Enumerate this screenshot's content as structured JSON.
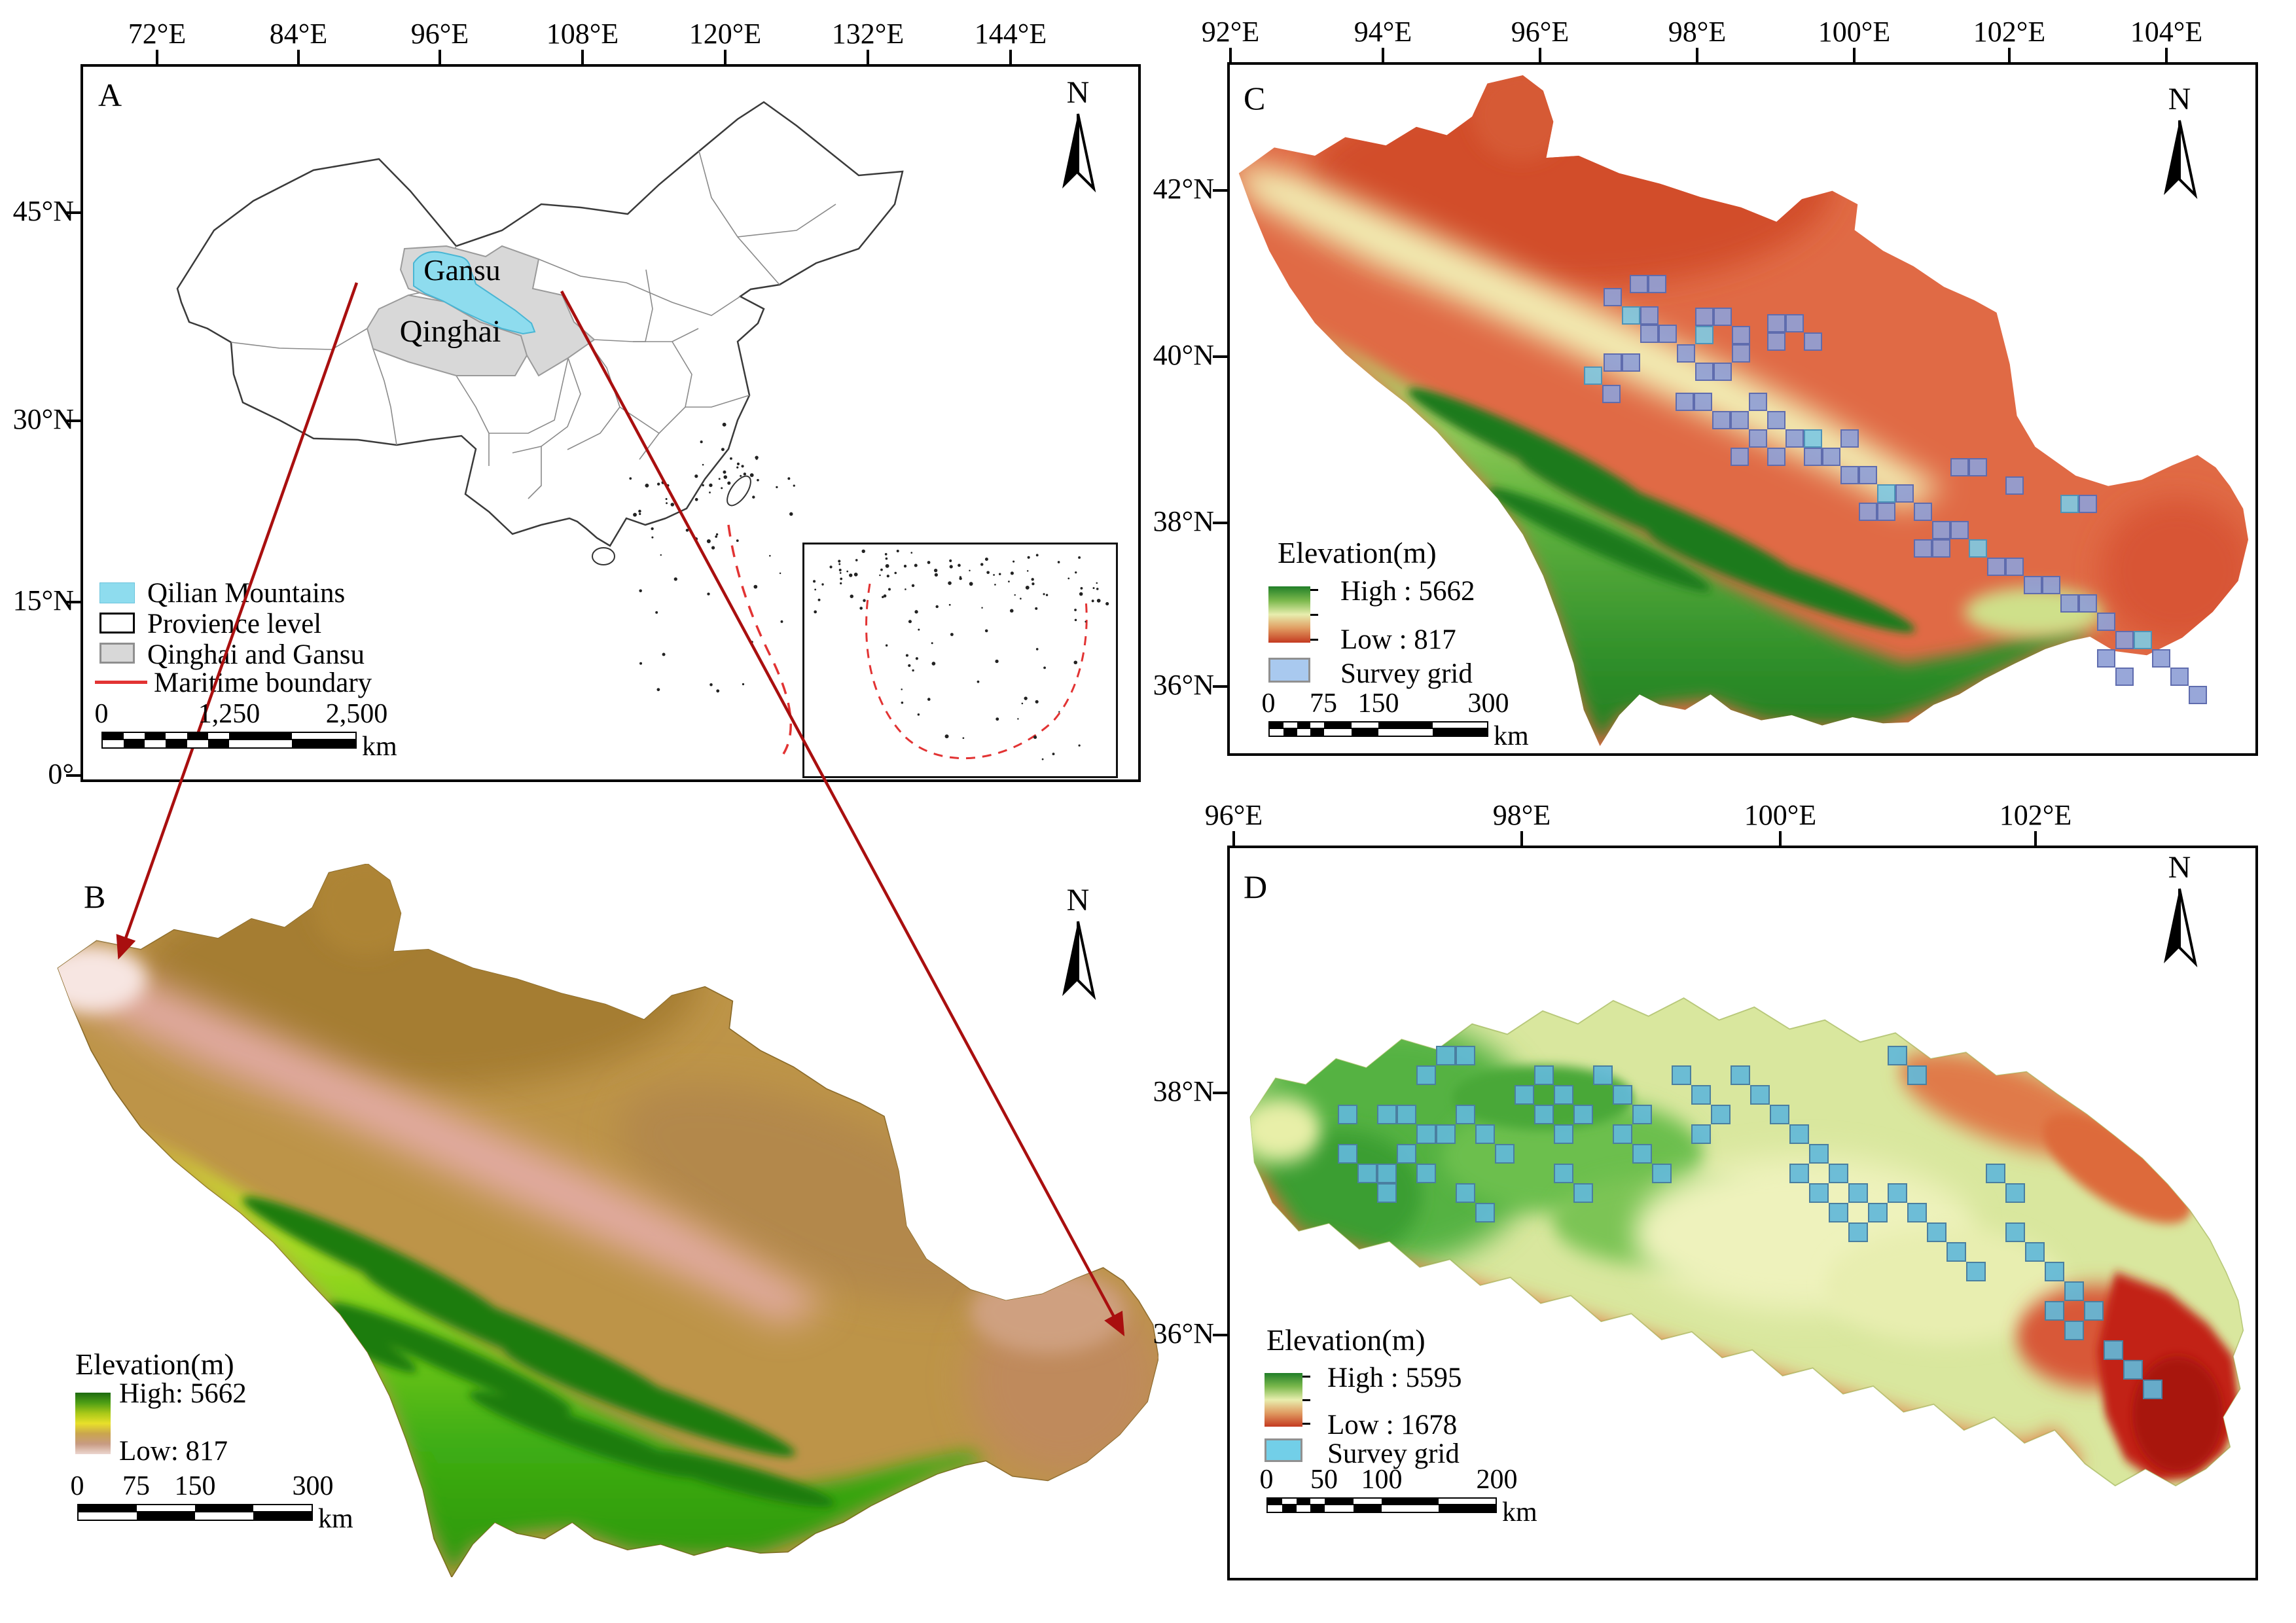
{
  "colors": {
    "qilian_fill": "#8edcee",
    "province_gray": "#d8d8d8",
    "maritime_red": "#e23333",
    "connector_red": "#a90f0f",
    "grid_color_c": "#8f9fd6",
    "grid_color_d": "#62b9d9"
  },
  "panelA": {
    "label": "A",
    "north": "N",
    "x_ticks": [
      "72°E",
      "84°E",
      "96°E",
      "108°E",
      "120°E",
      "132°E",
      "144°E"
    ],
    "y_ticks": [
      "45°N",
      "30°N",
      "15°N",
      "0°"
    ],
    "region_labels": {
      "gansu": "Gansu",
      "qinghai": "Qinghai"
    },
    "legend": [
      {
        "label": "Qilian Mountains"
      },
      {
        "label": "Provience level"
      },
      {
        "label": "Qinghai and  Gansu"
      },
      {
        "label": "Maritime boundary"
      }
    ],
    "scalebar": {
      "labels": [
        "0",
        "1,250",
        "2,500"
      ],
      "unit": "km"
    }
  },
  "panelB": {
    "label": "B",
    "north": "N",
    "legend": {
      "title": "Elevation(m)",
      "high": "High: 5662",
      "low": "Low: 817"
    },
    "scalebar": {
      "labels": [
        "0",
        "75",
        "150",
        "300"
      ],
      "unit": "km"
    }
  },
  "panelC": {
    "label": "C",
    "north": "N",
    "x_ticks": [
      "92°E",
      "94°E",
      "96°E",
      "98°E",
      "100°E",
      "102°E",
      "104°E"
    ],
    "y_ticks": [
      "42°N",
      "40°N",
      "38°N",
      "36°N"
    ],
    "legend": {
      "title": "Elevation(m)",
      "high": "High : 5662",
      "low": "Low : 817",
      "grid": "Survey grid"
    },
    "scalebar": {
      "labels": [
        "0",
        "75",
        "150",
        "300"
      ],
      "unit": "km"
    },
    "survey_cells": [
      [
        2478,
        468
      ],
      [
        2506,
        468
      ],
      [
        2506,
        496
      ],
      [
        2534,
        496
      ],
      [
        2478,
        540
      ],
      [
        2450,
        540
      ],
      [
        2590,
        470
      ],
      [
        2618,
        470
      ],
      [
        2646,
        498
      ],
      [
        2590,
        498
      ],
      [
        2562,
        526
      ],
      [
        2590,
        554
      ],
      [
        2618,
        554
      ],
      [
        2646,
        526
      ],
      [
        2700,
        480
      ],
      [
        2728,
        480
      ],
      [
        2700,
        508
      ],
      [
        2756,
        508
      ],
      [
        2420,
        560
      ],
      [
        2448,
        588
      ],
      [
        2560,
        600
      ],
      [
        2588,
        600
      ],
      [
        2616,
        628
      ],
      [
        2644,
        628
      ],
      [
        2672,
        600
      ],
      [
        2700,
        628
      ],
      [
        2728,
        656
      ],
      [
        2756,
        656
      ],
      [
        2672,
        656
      ],
      [
        2644,
        684
      ],
      [
        2700,
        684
      ],
      [
        2756,
        684
      ],
      [
        2784,
        684
      ],
      [
        2812,
        656
      ],
      [
        2812,
        712
      ],
      [
        2840,
        712
      ],
      [
        2868,
        740
      ],
      [
        2896,
        740
      ],
      [
        2840,
        768
      ],
      [
        2868,
        768
      ],
      [
        2924,
        768
      ],
      [
        2952,
        796
      ],
      [
        2980,
        796
      ],
      [
        2924,
        824
      ],
      [
        2952,
        824
      ],
      [
        3008,
        824
      ],
      [
        3036,
        852
      ],
      [
        3064,
        852
      ],
      [
        3092,
        880
      ],
      [
        3120,
        880
      ],
      [
        3148,
        908
      ],
      [
        3176,
        908
      ],
      [
        3204,
        936
      ],
      [
        3232,
        964
      ],
      [
        3260,
        964
      ],
      [
        3288,
        992
      ],
      [
        3316,
        1020
      ],
      [
        3204,
        992
      ],
      [
        3232,
        1020
      ],
      [
        3344,
        1048
      ],
      [
        2980,
        700
      ],
      [
        3008,
        700
      ],
      [
        3064,
        728
      ],
      [
        3148,
        756
      ],
      [
        3176,
        756
      ],
      [
        2490,
        420
      ],
      [
        2518,
        420
      ],
      [
        2450,
        440
      ]
    ]
  },
  "panelD": {
    "label": "D",
    "north": "N",
    "x_ticks": [
      "96°E",
      "98°E",
      "100°E",
      "102°E"
    ],
    "y_ticks": [
      "38°N",
      "36°N"
    ],
    "legend": {
      "title": "Elevation(m)",
      "high": "High : 5595",
      "low": "Low : 1678",
      "grid": "Survey grid"
    },
    "scalebar": {
      "labels": [
        "0",
        "50",
        "100",
        "200"
      ],
      "unit": "km"
    },
    "survey_cells": [
      [
        2104,
        1688
      ],
      [
        2134,
        1688
      ],
      [
        2164,
        1718
      ],
      [
        2194,
        1718
      ],
      [
        2134,
        1748
      ],
      [
        2104,
        1778
      ],
      [
        2164,
        1778
      ],
      [
        2224,
        1688
      ],
      [
        2254,
        1718
      ],
      [
        2284,
        1748
      ],
      [
        2224,
        1808
      ],
      [
        2254,
        1838
      ],
      [
        2314,
        1658
      ],
      [
        2344,
        1688
      ],
      [
        2344,
        1628
      ],
      [
        2374,
        1658
      ],
      [
        2404,
        1688
      ],
      [
        2374,
        1718
      ],
      [
        2434,
        1628
      ],
      [
        2464,
        1658
      ],
      [
        2494,
        1688
      ],
      [
        2464,
        1718
      ],
      [
        2494,
        1748
      ],
      [
        2524,
        1778
      ],
      [
        2554,
        1628
      ],
      [
        2584,
        1658
      ],
      [
        2614,
        1688
      ],
      [
        2584,
        1718
      ],
      [
        2644,
        1628
      ],
      [
        2674,
        1658
      ],
      [
        2704,
        1688
      ],
      [
        2734,
        1718
      ],
      [
        2764,
        1748
      ],
      [
        2794,
        1778
      ],
      [
        2824,
        1808
      ],
      [
        2854,
        1838
      ],
      [
        2734,
        1778
      ],
      [
        2764,
        1808
      ],
      [
        2794,
        1838
      ],
      [
        2824,
        1868
      ],
      [
        2884,
        1808
      ],
      [
        2914,
        1838
      ],
      [
        2944,
        1868
      ],
      [
        2974,
        1898
      ],
      [
        3004,
        1928
      ],
      [
        3064,
        1868
      ],
      [
        3094,
        1898
      ],
      [
        3124,
        1928
      ],
      [
        3154,
        1958
      ],
      [
        3184,
        1988
      ],
      [
        2164,
        1628
      ],
      [
        2194,
        1598
      ],
      [
        2224,
        1598
      ],
      [
        2044,
        1748
      ],
      [
        2074,
        1778
      ],
      [
        2104,
        1808
      ],
      [
        3034,
        1778
      ],
      [
        3064,
        1808
      ],
      [
        3124,
        1988
      ],
      [
        3154,
        2018
      ],
      [
        2884,
        1598
      ],
      [
        2914,
        1628
      ],
      [
        3214,
        2048
      ],
      [
        3244,
        2078
      ],
      [
        3274,
        2108
      ],
      [
        2044,
        1688
      ],
      [
        2374,
        1778
      ],
      [
        2404,
        1808
      ]
    ]
  }
}
